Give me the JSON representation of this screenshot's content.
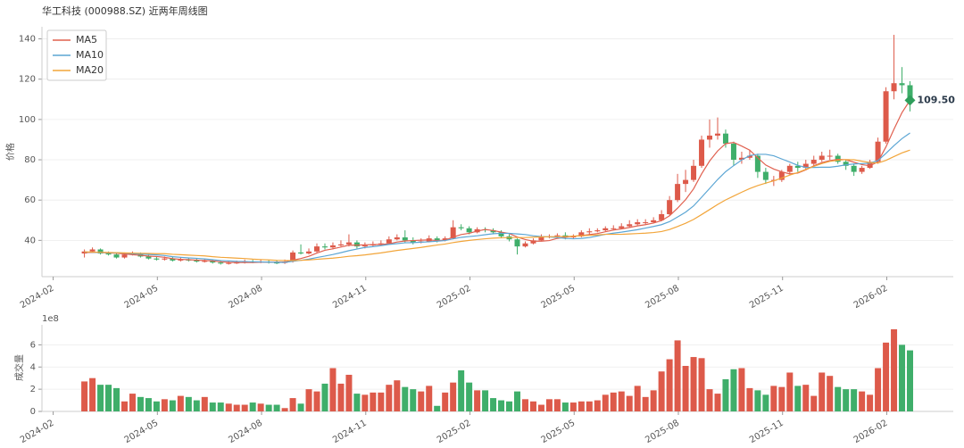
{
  "chart_data": [
    {
      "type": "candlestick",
      "title": "华工科技 (000988.SZ) 近两年周线图",
      "ylabel": "价格",
      "categories": [
        null,
        null,
        null,
        null,
        null,
        null,
        null,
        null,
        null,
        null,
        null,
        null,
        null,
        null,
        null,
        null,
        null,
        null,
        null,
        null,
        null,
        null,
        null,
        null,
        null,
        null,
        null,
        null,
        null,
        null,
        null,
        null,
        null,
        null,
        null,
        null,
        null,
        null,
        null,
        null,
        null,
        null,
        null,
        null,
        null,
        null,
        null,
        null,
        null,
        null,
        null,
        null,
        null,
        null,
        null,
        null,
        null,
        null,
        null,
        null,
        null,
        null,
        null,
        null,
        null,
        null,
        null,
        null,
        null,
        null,
        null,
        null,
        null,
        null,
        null,
        null,
        null,
        null,
        null,
        null,
        null,
        null,
        null,
        null,
        null,
        null,
        null,
        null,
        null,
        null,
        null,
        null,
        null,
        null,
        null,
        null,
        null,
        null,
        null,
        null,
        null,
        null,
        null,
        null
      ],
      "open": [
        33.5,
        34.5,
        35.5,
        33.5,
        33,
        31.5,
        33,
        33.5,
        32,
        31,
        30.5,
        31,
        30,
        30.5,
        30,
        29.5,
        29.8,
        29,
        28.5,
        28.8,
        29,
        29.5,
        29.2,
        29.5,
        29,
        28.8,
        29.5,
        34,
        33.5,
        34.5,
        37,
        36.5,
        37.5,
        38,
        39,
        37,
        37.5,
        38,
        38.5,
        40.5,
        41.5,
        40,
        39,
        39.5,
        41,
        40,
        41,
        46.5,
        46,
        44,
        45.5,
        45,
        44,
        42,
        40.5,
        37,
        38.5,
        40,
        42,
        42,
        42.5,
        41.5,
        42,
        44,
        44.5,
        45,
        46,
        46,
        47,
        48,
        49,
        49,
        50,
        53,
        60,
        68,
        70,
        77,
        90,
        92,
        93,
        88,
        80,
        81,
        82,
        74,
        70,
        70,
        74,
        77,
        76,
        78,
        80,
        82,
        82,
        79,
        77,
        74,
        76,
        79,
        89,
        114,
        118,
        117
      ],
      "high": [
        35.5,
        36.5,
        36,
        34.5,
        34,
        34,
        34.5,
        34,
        32.8,
        32,
        32,
        31.8,
        31.5,
        31.2,
        31,
        30.8,
        30.5,
        30,
        29.8,
        30,
        30.5,
        30.3,
        30.5,
        30.2,
        30,
        30.5,
        35,
        38,
        36,
        38.5,
        38.5,
        39,
        40,
        43,
        40,
        39,
        39.5,
        40,
        42,
        43,
        45,
        41.5,
        41,
        42.5,
        42,
        42,
        50,
        48,
        47,
        46.5,
        46.5,
        46,
        45,
        43,
        41,
        39.5,
        41,
        43,
        43,
        43.5,
        44,
        43,
        45,
        46,
        46,
        47,
        47.5,
        48.5,
        50,
        50.5,
        50.5,
        51.5,
        55,
        62,
        73,
        75,
        80,
        92,
        100,
        101,
        95,
        89,
        84,
        85,
        83,
        76,
        72,
        75,
        78,
        79,
        80,
        82,
        84,
        85,
        83,
        80,
        78,
        77,
        80,
        91,
        116,
        142,
        126,
        119
      ],
      "low": [
        31.5,
        34,
        33,
        32.5,
        31,
        31,
        32.5,
        31.5,
        30.5,
        30,
        30,
        29.5,
        29.5,
        29.5,
        29,
        29,
        28.5,
        28,
        28,
        28.3,
        28.5,
        28.7,
        28.7,
        28.5,
        28.2,
        28.3,
        29,
        33,
        33,
        34,
        35.5,
        35.5,
        37,
        37,
        36,
        36,
        37,
        37.5,
        38,
        40,
        39,
        38,
        38.5,
        39,
        39,
        39.5,
        40.5,
        45,
        43,
        43.5,
        44,
        43,
        41,
        39.5,
        33,
        36.5,
        38,
        39.5,
        41,
        41.5,
        40.5,
        41,
        41.5,
        43,
        44,
        44.5,
        45,
        45.5,
        46.5,
        47.5,
        48,
        48.5,
        49.5,
        52.5,
        59,
        64,
        69,
        76,
        86,
        90,
        86,
        77,
        78,
        80,
        71,
        68,
        67,
        69,
        73,
        74,
        75,
        77,
        79,
        80,
        78,
        75,
        72,
        73,
        75.5,
        78,
        88,
        110,
        113,
        104
      ],
      "close": [
        34.5,
        35.5,
        33.5,
        33,
        31.5,
        33,
        33.5,
        32,
        31,
        30.5,
        31,
        30,
        30.5,
        30,
        29.5,
        29.8,
        29,
        28.5,
        28.8,
        29,
        29.5,
        29.2,
        29.5,
        29,
        28.8,
        29.5,
        34,
        33.5,
        34.5,
        37,
        36.5,
        37.5,
        38,
        39,
        37,
        37.5,
        38,
        38.5,
        40.5,
        41.5,
        40,
        39,
        39.5,
        41,
        40,
        41,
        46.5,
        46,
        44,
        45.5,
        45,
        44,
        42,
        40.5,
        37,
        38.5,
        40,
        42,
        42,
        42.5,
        41.5,
        42,
        44,
        44.5,
        45,
        46,
        46,
        47,
        48,
        49,
        49,
        50,
        53,
        60,
        68,
        70,
        77,
        90,
        92,
        93,
        88,
        80,
        81,
        82,
        74,
        70,
        70,
        74,
        77,
        76,
        78,
        80,
        82,
        82,
        79,
        77,
        74,
        76,
        79,
        89,
        114,
        118,
        117,
        109.5
      ],
      "up_color": "#dd5a4a",
      "down_color": "#3fae6a",
      "series": [
        {
          "name": "MA5",
          "color": "#e0604f",
          "values": [
            34,
            34,
            34,
            33.8,
            33.6,
            33.3,
            32.9,
            32.6,
            32.2,
            32.0,
            31.6,
            30.9,
            30.6,
            30.4,
            30.2,
            30.0,
            29.8,
            29.4,
            29.1,
            29.0,
            29.0,
            29.0,
            29.2,
            29.2,
            29.2,
            29.2,
            30.2,
            31.0,
            32.1,
            33.7,
            35.1,
            35.8,
            36.7,
            37.6,
            37.6,
            37.8,
            37.9,
            38.0,
            38.3,
            39.2,
            39.7,
            39.9,
            40.1,
            40.2,
            39.9,
            40.1,
            41.6,
            42.9,
            43.5,
            44.6,
            45.4,
            44.9,
            44.1,
            43.4,
            41.7,
            40.4,
            39.6,
            39.6,
            39.9,
            41.0,
            41.6,
            42.0,
            42.4,
            42.9,
            43.4,
            44.3,
            45.1,
            45.7,
            46.4,
            47.2,
            47.8,
            48.6,
            49.8,
            52.2,
            56.0,
            60.2,
            65.6,
            73.0,
            79.4,
            84.4,
            88.0,
            88.6,
            86.8,
            84.8,
            81.0,
            77.4,
            75.4,
            74.0,
            73.0,
            73.4,
            75.0,
            77.0,
            78.6,
            79.6,
            80.2,
            80.0,
            78.8,
            77.6,
            77.0,
            79.0,
            86.4,
            95.2,
            103.4,
            109.5
          ]
        },
        {
          "name": "MA10",
          "color": "#5ca6d4",
          "values": [
            34.2,
            34.1,
            34,
            33.9,
            33.8,
            33.7,
            33.4,
            33.2,
            33.0,
            32.8,
            32.5,
            31.9,
            31.6,
            31.3,
            31.1,
            30.8,
            30.4,
            30.0,
            29.8,
            29.6,
            29.5,
            29.4,
            29.3,
            29.2,
            29.1,
            29.1,
            29.6,
            30.1,
            30.7,
            31.5,
            32.2,
            33.0,
            33.9,
            34.9,
            35.7,
            36.5,
            36.9,
            37.4,
            38.0,
            38.4,
            38.8,
            38.9,
            39.1,
            39.3,
            39.6,
            39.9,
            40.8,
            41.5,
            41.9,
            42.3,
            42.8,
            43.3,
            43.5,
            43.5,
            43.2,
            42.9,
            42.3,
            41.9,
            41.7,
            41.4,
            41.0,
            40.8,
            41.0,
            41.4,
            42.2,
            43.0,
            43.6,
            44.1,
            44.7,
            45.3,
            46.1,
            46.9,
            47.8,
            49.3,
            51.6,
            54.0,
            57.1,
            61.4,
            65.8,
            70.2,
            74.1,
            77.1,
            79.9,
            82.1,
            82.7,
            82.7,
            82.0,
            80.4,
            78.9,
            77.2,
            76.2,
            76.2,
            76.3,
            76.3,
            76.8,
            77.5,
            77.9,
            78.1,
            78.3,
            79.6,
            83.2,
            87.0,
            90.5,
            93.3
          ]
        },
        {
          "name": "MA20",
          "color": "#f2a53a",
          "values": [
            34.3,
            34.2,
            34.1,
            34.0,
            33.9,
            33.8,
            33.7,
            33.6,
            33.5,
            33.4,
            33.4,
            33.1,
            32.9,
            32.7,
            32.5,
            32.3,
            31.9,
            31.6,
            31.4,
            31.2,
            31.0,
            30.7,
            30.5,
            30.3,
            30.1,
            30.0,
            30.0,
            30.1,
            30.3,
            30.6,
            30.9,
            31.2,
            31.6,
            32.1,
            32.4,
            32.8,
            33.3,
            33.8,
            34.4,
            35.0,
            35.5,
            36.0,
            36.5,
            37.1,
            37.7,
            38.2,
            38.9,
            39.5,
            40.0,
            40.4,
            40.8,
            41.1,
            41.3,
            41.4,
            41.4,
            41.4,
            41.6,
            41.7,
            41.8,
            41.9,
            41.9,
            42.1,
            42.3,
            42.5,
            42.7,
            43.0,
            43.0,
            43.0,
            43.2,
            43.4,
            43.6,
            43.9,
            44.4,
            45.4,
            46.9,
            48.5,
            50.4,
            52.8,
            55.3,
            57.8,
            60.1,
            62.0,
            63.9,
            65.7,
            67.2,
            68.4,
            69.6,
            70.9,
            72.4,
            73.7,
            75.2,
            76.7,
            78.1,
            79.2,
            79.8,
            80.1,
            80.0,
            79.3,
            78.6,
            78.4,
            79.7,
            81.6,
            83.4,
            84.8
          ]
        }
      ],
      "annotation": {
        "value": 109.5,
        "label": "109.50",
        "color": "#2e9e5b"
      },
      "legend": "upper left",
      "grid": true,
      "ylim": [
        22,
        146
      ],
      "yticks": [
        40,
        60,
        80,
        100,
        120,
        140
      ],
      "xlim": [
        -5.3,
        108.4
      ],
      "xticks": [
        {
          "value": -3.9,
          "label": "2024-02"
        },
        {
          "value": 9.1,
          "label": "2024-05"
        },
        {
          "value": 22.1,
          "label": "2024-08"
        },
        {
          "value": 35.1,
          "label": "2024-11"
        },
        {
          "value": 48.1,
          "label": "2025-02"
        },
        {
          "value": 61.1,
          "label": "2025-05"
        },
        {
          "value": 74.1,
          "label": "2025-08"
        },
        {
          "value": 87.1,
          "label": "2025-11"
        },
        {
          "value": 100.1,
          "label": "2026-02"
        }
      ]
    },
    {
      "type": "bar",
      "ylabel": "成交量",
      "scale_label": "1e8",
      "categories": [
        null,
        null,
        null,
        null,
        null,
        null,
        null,
        null,
        null,
        null,
        null,
        null,
        null,
        null,
        null,
        null,
        null,
        null,
        null,
        null,
        null,
        null,
        null,
        null,
        null,
        null,
        null,
        null,
        null,
        null,
        null,
        null,
        null,
        null,
        null,
        null,
        null,
        null,
        null,
        null,
        null,
        null,
        null,
        null,
        null,
        null,
        null,
        null,
        null,
        null,
        null,
        null,
        null,
        null,
        null,
        null,
        null,
        null,
        null,
        null,
        null,
        null,
        null,
        null,
        null,
        null,
        null,
        null,
        null,
        null,
        null,
        null,
        null,
        null,
        null,
        null,
        null,
        null,
        null,
        null,
        null,
        null,
        null,
        null,
        null,
        null,
        null,
        null,
        null,
        null,
        null,
        null,
        null,
        null,
        null,
        null,
        null,
        null,
        null,
        null,
        null,
        null,
        null,
        null
      ],
      "values": [
        2.7,
        3.0,
        2.4,
        2.4,
        2.1,
        0.9,
        1.6,
        1.3,
        1.2,
        0.9,
        1.1,
        1.0,
        1.4,
        1.3,
        1.0,
        1.3,
        0.8,
        0.8,
        0.7,
        0.6,
        0.6,
        0.8,
        0.7,
        0.6,
        0.6,
        0.3,
        1.2,
        0.7,
        2.0,
        1.8,
        2.5,
        3.9,
        2.5,
        3.3,
        1.6,
        1.5,
        1.7,
        1.7,
        2.4,
        2.8,
        2.2,
        2.0,
        1.8,
        2.3,
        0.5,
        1.7,
        2.6,
        3.7,
        2.6,
        1.9,
        1.9,
        1.2,
        1.0,
        0.9,
        1.8,
        1.1,
        0.9,
        0.6,
        1.1,
        1.1,
        0.8,
        0.8,
        0.9,
        0.9,
        1.0,
        1.5,
        1.7,
        1.8,
        1.4,
        2.3,
        1.3,
        1.9,
        3.6,
        4.7,
        6.4,
        4.1,
        4.9,
        4.8,
        2.0,
        1.6,
        2.9,
        3.8,
        3.9,
        2.1,
        1.9,
        1.5,
        2.3,
        2.2,
        3.5,
        2.3,
        2.4,
        1.4,
        3.5,
        3.2,
        2.2,
        2.0,
        2.0,
        1.8,
        1.5,
        3.9,
        6.2,
        7.4,
        6.0,
        5.5
      ],
      "grid": true,
      "ylim": [
        0,
        7.8
      ],
      "yticks": [
        0,
        2,
        4,
        6
      ],
      "xlim": [
        -5.3,
        108.4
      ],
      "xticks": [
        {
          "value": -3.9,
          "label": "2024-02"
        },
        {
          "value": 9.1,
          "label": "2024-05"
        },
        {
          "value": 22.1,
          "label": "2024-08"
        },
        {
          "value": 35.1,
          "label": "2024-11"
        },
        {
          "value": 48.1,
          "label": "2025-02"
        },
        {
          "value": 61.1,
          "label": "2025-05"
        },
        {
          "value": 74.1,
          "label": "2025-08"
        },
        {
          "value": 87.1,
          "label": "2025-11"
        },
        {
          "value": 100.1,
          "label": "2026-02"
        }
      ]
    }
  ]
}
